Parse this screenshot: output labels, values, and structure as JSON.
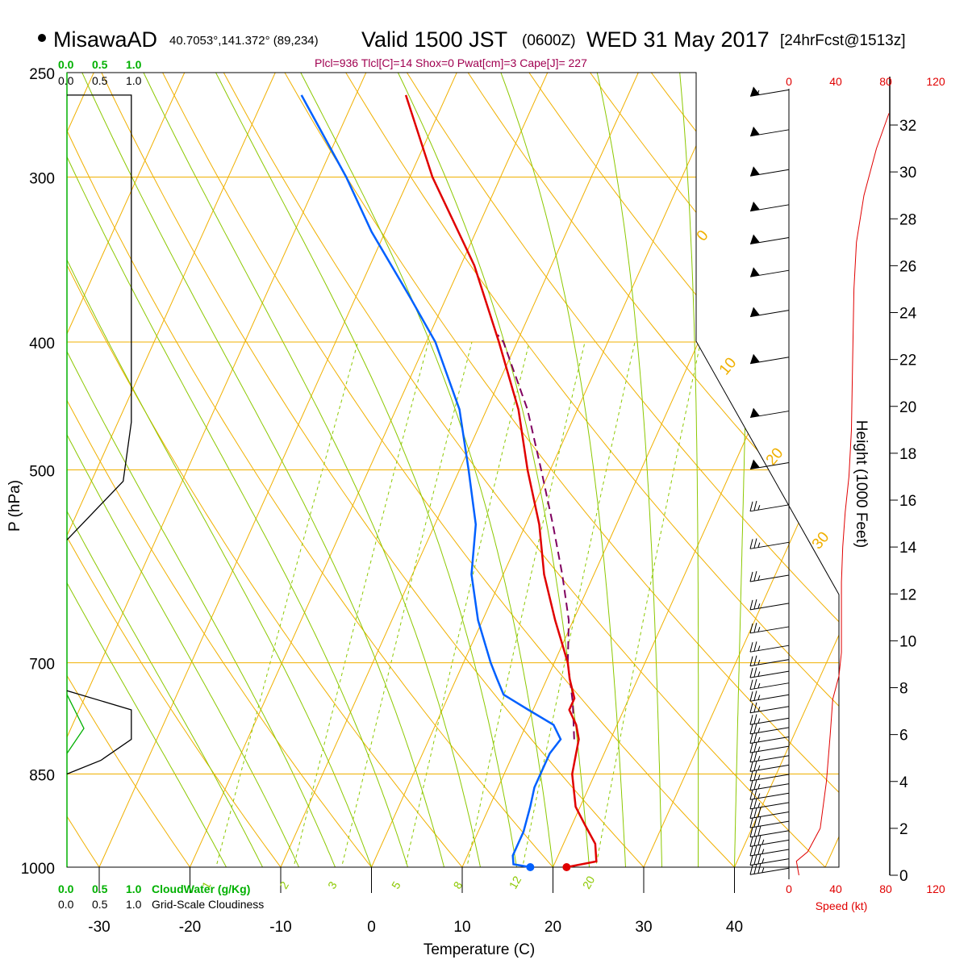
{
  "header": {
    "station": "MisawaAD",
    "coords": "40.7053°,141.372° (89,234)",
    "valid_label": "Valid 1500 JST",
    "zulu": "(0600Z)",
    "date": "WED 31 May 2017",
    "forecast": "[24hrFcst@1513z]",
    "indices": "Plcl=936 Tlcl[C]=14 Shox=0 Pwat[cm]=3 Cape[J]= 227"
  },
  "legends": {
    "cw_scale": [
      "0.0",
      "0.5",
      "1.0"
    ],
    "cloud_scale": [
      "0.0",
      "0.5",
      "1.0"
    ],
    "cloudwater_label": "CloudWater (g/Kg)",
    "cloudiness_label": "Grid-Scale Cloudiness"
  },
  "colors": {
    "isobar": "#f0b000",
    "isotherm": "#f0b000",
    "dry_adiabat": "#f0b000",
    "moist_adiabat": "#8cc800",
    "mixing_ratio": "#8cc800",
    "temperature": "#e00000",
    "dewpoint": "#0060ff",
    "parcel": "#800060",
    "cloudwater": "#00b000",
    "wind_speed": "#e00000",
    "indices_text": "#a00050"
  },
  "chart_data": {
    "type": "skew-t",
    "xlabel": "Temperature (C)",
    "ylabel": "P (hPa)",
    "x_ticks": [
      -30,
      -20,
      -10,
      0,
      10,
      20,
      30,
      40
    ],
    "pressure_ticks": [
      250,
      300,
      400,
      500,
      700,
      850,
      1000
    ],
    "height_axis": {
      "label": "Height (1000 Feet)",
      "ticks": [
        0,
        2,
        4,
        6,
        8,
        10,
        12,
        14,
        16,
        18,
        20,
        22,
        24,
        26,
        28,
        30,
        32
      ]
    },
    "speed_axis": {
      "label": "Speed (kt)",
      "ticks": [
        0,
        40,
        80,
        120
      ]
    },
    "isotherm_labels": [
      "10",
      "0",
      "-10",
      "-20",
      "-30"
    ],
    "dry_adiabat_labels": [
      "0",
      "10",
      "20",
      "30"
    ],
    "mixing_ratio_labels": [
      "1",
      "2",
      "3",
      "5",
      "8",
      "12",
      "20"
    ],
    "temperature_profile": [
      {
        "p": 1000,
        "t": 21.5
      },
      {
        "p": 990,
        "t": 24.5
      },
      {
        "p": 960,
        "t": 23.5
      },
      {
        "p": 930,
        "t": 21.5
      },
      {
        "p": 900,
        "t": 19.5
      },
      {
        "p": 850,
        "t": 17.5
      },
      {
        "p": 800,
        "t": 16.5
      },
      {
        "p": 780,
        "t": 15.5
      },
      {
        "p": 760,
        "t": 14.0
      },
      {
        "p": 745,
        "t": 14.0
      },
      {
        "p": 720,
        "t": 12.5
      },
      {
        "p": 700,
        "t": 11.5
      },
      {
        "p": 650,
        "t": 8.0
      },
      {
        "p": 600,
        "t": 4.5
      },
      {
        "p": 550,
        "t": 1.5
      },
      {
        "p": 500,
        "t": -2.5
      },
      {
        "p": 450,
        "t": -6.5
      },
      {
        "p": 400,
        "t": -12.0
      },
      {
        "p": 350,
        "t": -18.5
      },
      {
        "p": 300,
        "t": -27.5
      },
      {
        "p": 260,
        "t": -34.5
      }
    ],
    "dewpoint_profile": [
      {
        "p": 1000,
        "t": 17.5
      },
      {
        "p": 995,
        "t": 15.5
      },
      {
        "p": 980,
        "t": 15.0
      },
      {
        "p": 940,
        "t": 15.0
      },
      {
        "p": 900,
        "t": 14.5
      },
      {
        "p": 870,
        "t": 14.0
      },
      {
        "p": 850,
        "t": 14.0
      },
      {
        "p": 820,
        "t": 14.0
      },
      {
        "p": 800,
        "t": 14.5
      },
      {
        "p": 780,
        "t": 13.0
      },
      {
        "p": 760,
        "t": 9.5
      },
      {
        "p": 740,
        "t": 6.0
      },
      {
        "p": 720,
        "t": 4.5
      },
      {
        "p": 700,
        "t": 3.0
      },
      {
        "p": 650,
        "t": -0.5
      },
      {
        "p": 600,
        "t": -3.5
      },
      {
        "p": 550,
        "t": -5.5
      },
      {
        "p": 500,
        "t": -9.0
      },
      {
        "p": 450,
        "t": -13.0
      },
      {
        "p": 400,
        "t": -19.0
      },
      {
        "p": 370,
        "t": -24.0
      },
      {
        "p": 330,
        "t": -31.5
      },
      {
        "p": 300,
        "t": -37.0
      },
      {
        "p": 260,
        "t": -46.0
      }
    ],
    "parcel_profile": [
      {
        "p": 800,
        "t": 16.0
      },
      {
        "p": 750,
        "t": 14.0
      },
      {
        "p": 700,
        "t": 11.5
      },
      {
        "p": 650,
        "t": 9.5
      },
      {
        "p": 600,
        "t": 6.5
      },
      {
        "p": 550,
        "t": 3.0
      },
      {
        "p": 500,
        "t": -1.0
      },
      {
        "p": 450,
        "t": -5.5
      },
      {
        "p": 400,
        "t": -11.5
      },
      {
        "p": 395,
        "t": -12.5
      }
    ],
    "surface_temp_marker": {
      "p": 1000,
      "t": 21.5
    },
    "surface_dewpoint_marker": {
      "p": 1000,
      "t": 17.5
    },
    "wind_speed_profile": [
      {
        "h": 0,
        "s": 8
      },
      {
        "h": 0.6,
        "s": 6
      },
      {
        "h": 1.0,
        "s": 15
      },
      {
        "h": 2.0,
        "s": 25
      },
      {
        "h": 4.0,
        "s": 30
      },
      {
        "h": 6.0,
        "s": 33
      },
      {
        "h": 7.5,
        "s": 35
      },
      {
        "h": 8.5,
        "s": 40
      },
      {
        "h": 9.5,
        "s": 42
      },
      {
        "h": 11,
        "s": 42
      },
      {
        "h": 12.5,
        "s": 42
      },
      {
        "h": 14,
        "s": 43
      },
      {
        "h": 15.5,
        "s": 45
      },
      {
        "h": 17,
        "s": 48
      },
      {
        "h": 19,
        "s": 50
      },
      {
        "h": 22,
        "s": 51
      },
      {
        "h": 25,
        "s": 52
      },
      {
        "h": 27,
        "s": 54
      },
      {
        "h": 29,
        "s": 60
      },
      {
        "h": 31,
        "s": 70
      },
      {
        "h": 32.5,
        "s": 80
      }
    ],
    "wind_barbs": [
      {
        "h": 0.3,
        "speed": 35
      },
      {
        "h": 0.7,
        "speed": 35
      },
      {
        "h": 1.1,
        "speed": 35
      },
      {
        "h": 1.5,
        "speed": 35
      },
      {
        "h": 1.9,
        "speed": 30
      },
      {
        "h": 2.3,
        "speed": 30
      },
      {
        "h": 2.7,
        "speed": 30
      },
      {
        "h": 3.1,
        "speed": 25
      },
      {
        "h": 3.5,
        "speed": 25
      },
      {
        "h": 3.9,
        "speed": 25
      },
      {
        "h": 4.3,
        "speed": 25
      },
      {
        "h": 4.7,
        "speed": 25
      },
      {
        "h": 5.1,
        "speed": 25
      },
      {
        "h": 5.5,
        "speed": 25
      },
      {
        "h": 5.9,
        "speed": 25
      },
      {
        "h": 6.3,
        "speed": 25
      },
      {
        "h": 6.7,
        "speed": 25
      },
      {
        "h": 7.2,
        "speed": 25
      },
      {
        "h": 7.7,
        "speed": 25
      },
      {
        "h": 8.2,
        "speed": 25
      },
      {
        "h": 8.7,
        "speed": 25
      },
      {
        "h": 9.2,
        "speed": 25
      },
      {
        "h": 9.8,
        "speed": 25
      },
      {
        "h": 10.6,
        "speed": 25
      },
      {
        "h": 11.6,
        "speed": 25
      },
      {
        "h": 12.8,
        "speed": 25
      },
      {
        "h": 14.2,
        "speed": 25
      },
      {
        "h": 15.8,
        "speed": 25
      },
      {
        "h": 17.6,
        "speed": 50
      },
      {
        "h": 19.8,
        "speed": 50
      },
      {
        "h": 22.1,
        "speed": 50
      },
      {
        "h": 24.1,
        "speed": 50
      },
      {
        "h": 25.8,
        "speed": 50
      },
      {
        "h": 27.2,
        "speed": 50
      },
      {
        "h": 28.6,
        "speed": 50
      },
      {
        "h": 30.1,
        "speed": 50
      },
      {
        "h": 31.8,
        "speed": 50
      },
      {
        "h": 33.5,
        "speed": 55
      }
    ],
    "cloudiness_profile": [
      {
        "p": 260,
        "c": 0.95
      },
      {
        "p": 460,
        "c": 0.95
      },
      {
        "p": 510,
        "c": 0.83
      },
      {
        "p": 565,
        "c": 0.0
      }
    ],
    "cloudiness_profile_low": [
      {
        "p": 735,
        "c": 0.0
      },
      {
        "p": 760,
        "c": 0.95
      },
      {
        "p": 800,
        "c": 0.95
      },
      {
        "p": 830,
        "c": 0.5
      },
      {
        "p": 850,
        "c": 0.0
      }
    ],
    "cloudwater_profile": [
      {
        "p": 740,
        "c": 0.0
      },
      {
        "p": 785,
        "c": 0.25
      },
      {
        "p": 820,
        "c": 0.0
      }
    ]
  }
}
